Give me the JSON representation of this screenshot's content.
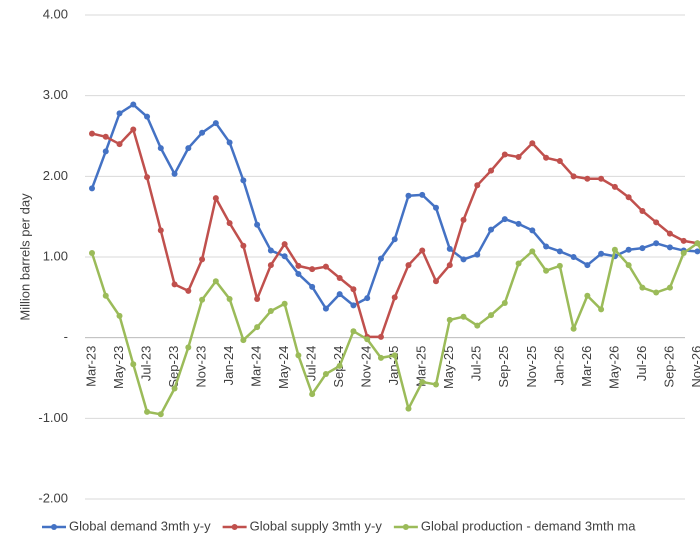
{
  "chart_data": {
    "type": "line",
    "y_label": "Million barrels per day",
    "categories": [
      "Mar-23",
      null,
      "May-23",
      null,
      "Jul-23",
      null,
      "Sep-23",
      null,
      "Nov-23",
      null,
      "Jan-24",
      null,
      "Mar-24",
      null,
      "May-24",
      null,
      "Jul-24",
      null,
      "Sep-24",
      null,
      "Nov-24",
      null,
      "Jan-25",
      null,
      "Mar-25",
      null,
      "May-25",
      null,
      "Jul-25",
      null,
      "Sep-25",
      null,
      "Nov-25",
      null,
      "Jan-26",
      null,
      "Mar-26",
      null,
      "May-26",
      null,
      "Jul-26",
      null,
      "Sep-26",
      null,
      "Nov-26",
      null
    ],
    "series": [
      {
        "name": "Global demand 3mth y-y",
        "color": "#4472c4",
        "values": [
          1.85,
          2.31,
          2.78,
          2.89,
          2.74,
          2.35,
          2.03,
          2.35,
          2.54,
          2.66,
          2.42,
          1.95,
          1.4,
          1.08,
          1.01,
          0.79,
          0.63,
          0.36,
          0.54,
          0.4,
          0.49,
          0.98,
          1.22,
          1.76,
          1.77,
          1.61,
          1.1,
          0.97,
          1.03,
          1.34,
          1.47,
          1.41,
          1.33,
          1.13,
          1.07,
          1.0,
          0.9,
          1.04,
          1.01,
          1.09,
          1.11,
          1.17,
          1.12,
          1.08,
          1.07,
          1.1
        ]
      },
      {
        "name": "Global supply 3mth y-y",
        "color": "#c0504d",
        "values": [
          2.53,
          2.49,
          2.4,
          2.58,
          1.99,
          1.33,
          0.66,
          0.58,
          0.97,
          1.73,
          1.42,
          1.14,
          0.48,
          0.9,
          1.16,
          0.89,
          0.85,
          0.88,
          0.74,
          0.6,
          0.01,
          0.01,
          0.5,
          0.9,
          1.08,
          0.7,
          0.9,
          1.46,
          1.89,
          2.07,
          2.27,
          2.24,
          2.41,
          2.23,
          2.19,
          2.0,
          1.97,
          1.97,
          1.87,
          1.74,
          1.57,
          1.43,
          1.29,
          1.2,
          1.17,
          1.15
        ]
      },
      {
        "name": "Global production - demand 3mth ma",
        "color": "#9bbb59",
        "values": [
          1.05,
          0.52,
          0.27,
          -0.33,
          -0.92,
          -0.95,
          -0.63,
          -0.12,
          0.47,
          0.7,
          0.48,
          -0.03,
          0.13,
          0.33,
          0.42,
          -0.22,
          -0.7,
          -0.45,
          -0.35,
          0.08,
          -0.02,
          -0.25,
          -0.22,
          -0.88,
          -0.55,
          -0.58,
          0.22,
          0.26,
          0.15,
          0.28,
          0.43,
          0.92,
          1.07,
          0.83,
          0.89,
          0.11,
          0.52,
          0.35,
          1.09,
          0.9,
          0.62,
          0.56,
          0.62,
          1.05,
          1.17,
          0.88
        ]
      }
    ],
    "ylim": [
      -2,
      4
    ],
    "yticks": [
      {
        "value": -2,
        "label": "-2.00"
      },
      {
        "value": -1,
        "label": "-1.00"
      },
      {
        "value": 0,
        "label": "-"
      },
      {
        "value": 1,
        "label": "1.00"
      },
      {
        "value": 2,
        "label": "2.00"
      },
      {
        "value": 3,
        "label": "3.00"
      },
      {
        "value": 4,
        "label": "4.00"
      }
    ],
    "grid": true,
    "legend": "bottom"
  }
}
